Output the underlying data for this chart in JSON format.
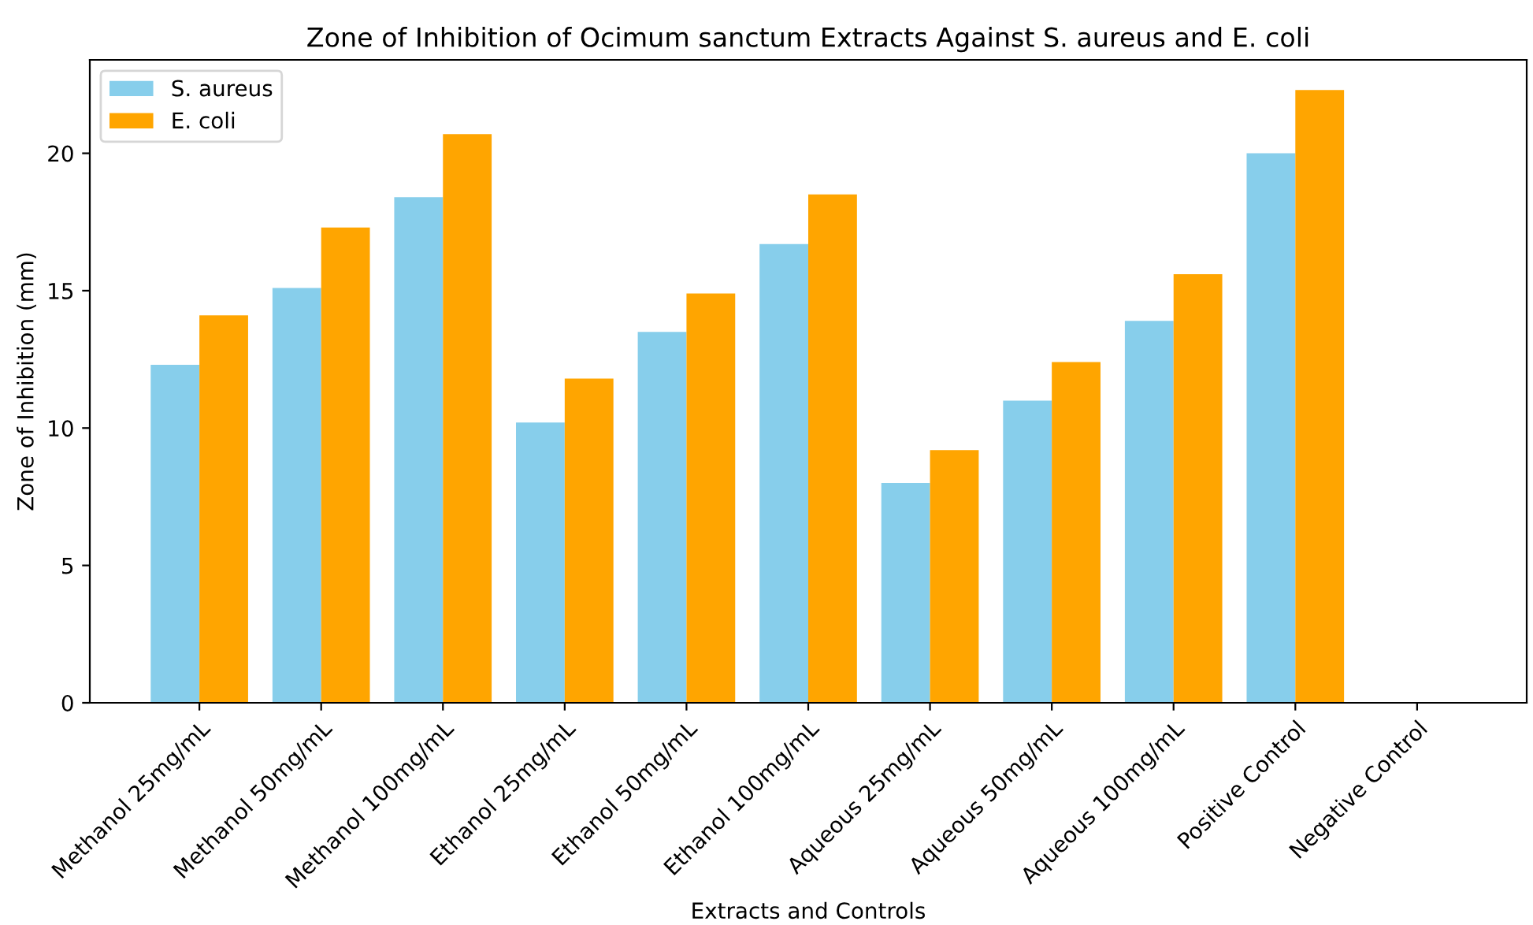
{
  "chart_data": {
    "type": "bar",
    "title": "Zone of Inhibition of Ocimum sanctum Extracts Against S. aureus and E. coli",
    "xlabel": "Extracts and Controls",
    "ylabel": "Zone of Inhibition (mm)",
    "categories": [
      "Methanol 25mg/mL",
      "Methanol 50mg/mL",
      "Methanol 100mg/mL",
      "Ethanol 25mg/mL",
      "Ethanol 50mg/mL",
      "Ethanol 100mg/mL",
      "Aqueous 25mg/mL",
      "Aqueous 50mg/mL",
      "Aqueous 100mg/mL",
      "Positive Control",
      "Negative Control"
    ],
    "series": [
      {
        "name": "S. aureus",
        "color": "#87ceeb",
        "values": [
          12.3,
          15.1,
          18.4,
          10.2,
          13.5,
          16.7,
          8.0,
          11.0,
          13.9,
          20.0,
          0
        ]
      },
      {
        "name": "E. coli",
        "color": "#ffa500",
        "values": [
          14.1,
          17.3,
          20.7,
          11.8,
          14.9,
          18.5,
          9.2,
          12.4,
          15.6,
          22.3,
          0
        ]
      }
    ],
    "ylim": [
      0,
      23.4
    ],
    "yticks": [
      0,
      5,
      10,
      15,
      20
    ],
    "legend": "top left",
    "grid": false
  }
}
